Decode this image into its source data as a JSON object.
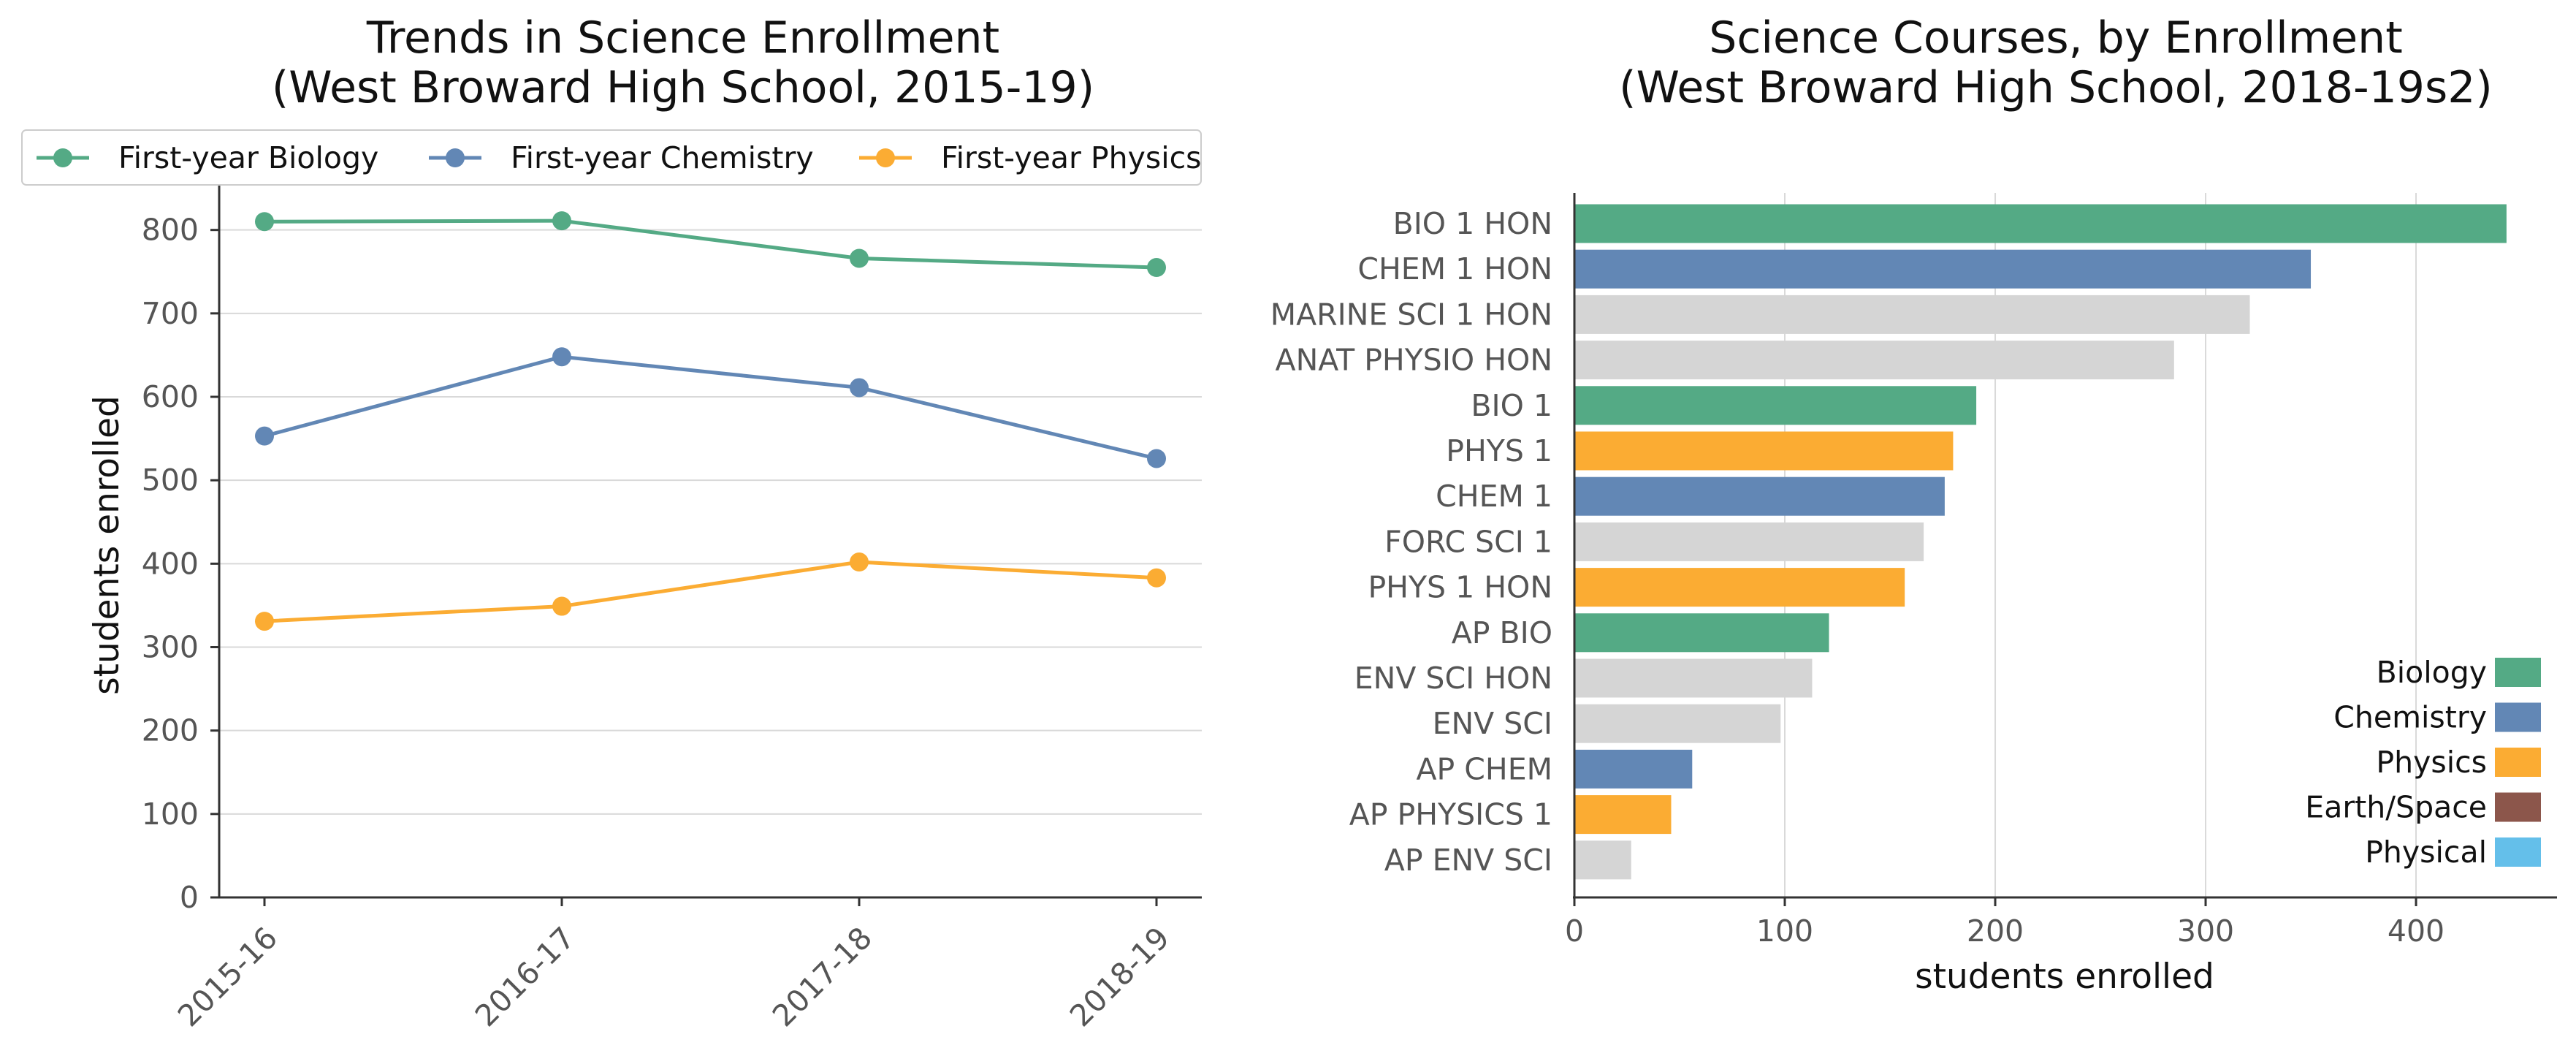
{
  "chart_data": [
    {
      "type": "line",
      "title": "Trends in Science Enrollment",
      "subtitle": "(West Broward High School, 2015-19)",
      "xlabel": "",
      "ylabel": "students enrolled",
      "categories": [
        "2015-16",
        "2016-17",
        "2017-18",
        "2018-19"
      ],
      "ylim": [
        0,
        840
      ],
      "yticks": [
        0,
        100,
        200,
        300,
        400,
        500,
        600,
        700,
        800
      ],
      "grid": "horizontal",
      "legend_position": "top",
      "series": [
        {
          "name": "First-year Biology",
          "color": "#54aa85",
          "values": [
            810,
            811,
            766,
            755
          ]
        },
        {
          "name": "First-year Chemistry",
          "color": "#6287b5",
          "values": [
            553,
            648,
            611,
            526
          ]
        },
        {
          "name": "First-year Physics",
          "color": "#fbac33",
          "values": [
            331,
            349,
            402,
            383
          ]
        }
      ]
    },
    {
      "type": "bar",
      "orientation": "horizontal",
      "title": "Science Courses, by Enrollment",
      "subtitle": "(West Broward High School, 2018-19s2)",
      "xlabel": "students enrolled",
      "ylabel": "",
      "xlim": [
        0,
        467
      ],
      "xticks": [
        0,
        100,
        200,
        300,
        400
      ],
      "grid": "vertical",
      "legend_position": "lower-right",
      "categories": [
        "BIO 1 HON",
        "CHEM 1 HON",
        "MARINE SCI 1 HON",
        "ANAT PHYSIO HON",
        "BIO 1",
        "PHYS 1",
        "CHEM 1",
        "FORC SCI 1",
        "PHYS 1 HON",
        "AP BIO",
        "ENV SCI HON",
        "ENV SCI",
        "AP CHEM",
        "AP PHYSICS 1",
        "AP ENV SCI"
      ],
      "values": [
        443,
        350,
        321,
        285,
        191,
        180,
        176,
        166,
        157,
        121,
        113,
        98,
        56,
        46,
        27
      ],
      "groups": [
        "Biology",
        "Chemistry",
        "Other",
        "Other",
        "Biology",
        "Physics",
        "Chemistry",
        "Other",
        "Physics",
        "Biology",
        "Other",
        "Other",
        "Chemistry",
        "Physics",
        "Other"
      ],
      "group_colors": {
        "Biology": "#54aa85",
        "Chemistry": "#6287b5",
        "Physics": "#fbac33",
        "Earth/Space": "#8c564b",
        "Physical": "#64bfea",
        "Other": "#d5d5d5"
      },
      "legend": [
        "Biology",
        "Chemistry",
        "Physics",
        "Earth/Space",
        "Physical"
      ]
    }
  ]
}
